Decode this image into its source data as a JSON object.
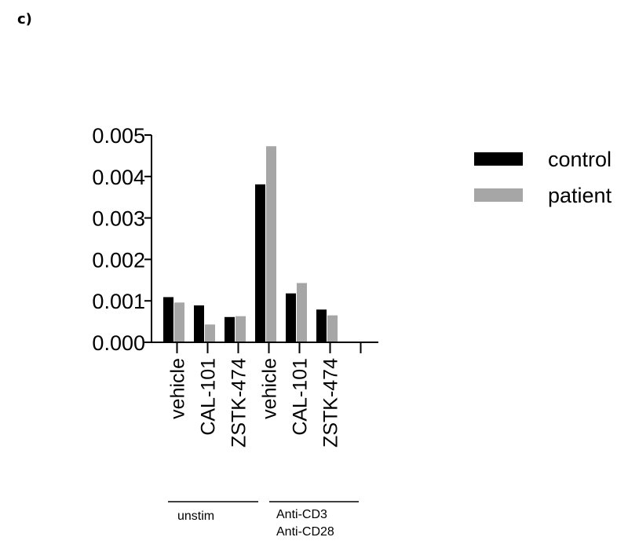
{
  "panel_label": "c)",
  "chart_data": {
    "type": "bar",
    "title": "",
    "xlabel": "",
    "ylabel": "",
    "ylim": [
      0,
      0.005
    ],
    "yticks": [
      "0.000",
      "0.001",
      "0.002",
      "0.003",
      "0.004",
      "0.005"
    ],
    "categories": [
      "vehicle",
      "CAL-101",
      "ZSTK-474",
      "vehicle",
      "CAL-101",
      "ZSTK-474"
    ],
    "series": [
      {
        "name": "control",
        "color": "#000000",
        "values": [
          0.00109,
          0.00089,
          0.00061,
          0.00381,
          0.00118,
          0.00079
        ]
      },
      {
        "name": "patient",
        "color": "#a6a6a6",
        "values": [
          0.00096,
          0.00043,
          0.00063,
          0.00473,
          0.00143,
          0.00065
        ]
      }
    ],
    "groups": [
      {
        "label_lines": [
          "unstim"
        ]
      },
      {
        "label_lines": [
          "Anti-CD3",
          "Anti-CD28"
        ]
      }
    ],
    "legend": {
      "position": "right"
    }
  }
}
